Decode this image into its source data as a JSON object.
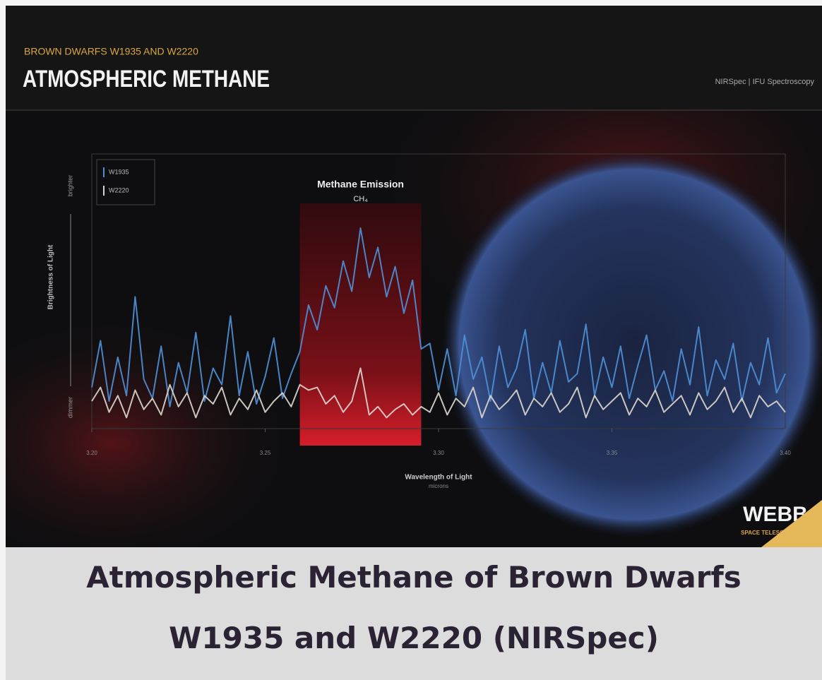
{
  "chart_data": {
    "type": "line",
    "suptitle": "BROWN DWARFS W1935 AND W2220",
    "title": "ATMOSPHERIC METHANE",
    "instrument": "NIRSpec | IFU Spectroscopy",
    "annotation": {
      "title": "Methane Emission",
      "formula": "CH₄",
      "range": [
        3.26,
        3.295
      ],
      "color": "#c8202c"
    },
    "y_label": "Brightness of Light",
    "y_high": "brighter",
    "y_low": "dimmer",
    "x_label": "Wavelength of Light",
    "x_unit": "microns",
    "logo": "WEBB",
    "logo_sub": "SPACE TELESCOPE",
    "xlim": [
      3.2,
      3.4
    ],
    "xticks": [
      {
        "value": 3.2,
        "label": "3.20"
      },
      {
        "value": 3.25,
        "label": "3.25"
      },
      {
        "value": 3.3,
        "label": "3.30"
      },
      {
        "value": 3.35,
        "label": "3.35"
      },
      {
        "value": 3.4,
        "label": "3.40"
      }
    ],
    "ylim": [
      0,
      10
    ],
    "legend": "upper left",
    "x": [
      3.2,
      3.2025,
      3.205,
      3.2075,
      3.21,
      3.2125,
      3.215,
      3.2175,
      3.22,
      3.2225,
      3.225,
      3.2275,
      3.23,
      3.2325,
      3.235,
      3.2375,
      3.24,
      3.2425,
      3.245,
      3.2475,
      3.25,
      3.2525,
      3.255,
      3.2575,
      3.26,
      3.2625,
      3.265,
      3.2675,
      3.27,
      3.2725,
      3.275,
      3.2775,
      3.28,
      3.2825,
      3.285,
      3.2875,
      3.29,
      3.2925,
      3.295,
      3.2975,
      3.3,
      3.3025,
      3.305,
      3.3075,
      3.31,
      3.3125,
      3.315,
      3.3175,
      3.32,
      3.3225,
      3.325,
      3.3275,
      3.33,
      3.3325,
      3.335,
      3.3375,
      3.34,
      3.3425,
      3.345,
      3.3475,
      3.35,
      3.3525,
      3.355,
      3.3575,
      3.36,
      3.3625,
      3.365,
      3.3675,
      3.37,
      3.3725,
      3.375,
      3.3775,
      3.38,
      3.3825,
      3.385,
      3.3875,
      3.39,
      3.3925,
      3.395,
      3.3975,
      3.4
    ],
    "series": [
      {
        "name": "W1935",
        "color": "#4d8fd6",
        "values": [
          1.5,
          3.2,
          1.0,
          2.6,
          1.2,
          4.8,
          1.8,
          1.1,
          3.0,
          0.8,
          2.4,
          1.3,
          3.5,
          1.0,
          2.2,
          1.6,
          4.1,
          1.2,
          2.8,
          0.9,
          1.9,
          3.3,
          1.1,
          2.0,
          2.8,
          4.5,
          3.6,
          5.2,
          4.4,
          6.1,
          5.0,
          7.3,
          5.5,
          6.6,
          4.8,
          5.9,
          4.2,
          5.4,
          2.9,
          3.1,
          1.4,
          2.9,
          1.2,
          3.4,
          1.8,
          2.6,
          1.0,
          3.0,
          1.5,
          2.2,
          3.6,
          1.1,
          2.4,
          1.3,
          3.2,
          1.7,
          2.0,
          3.8,
          1.2,
          2.6,
          1.5,
          3.0,
          1.1,
          2.3,
          3.4,
          1.4,
          2.1,
          1.0,
          2.9,
          1.6,
          3.7,
          1.2,
          2.5,
          1.8,
          3.1,
          1.0,
          2.4,
          1.6,
          3.3,
          1.3,
          2.0
        ]
      },
      {
        "name": "W2220",
        "color": "#d9d4cc",
        "values": [
          1.0,
          1.5,
          0.6,
          1.2,
          0.4,
          1.4,
          0.7,
          1.1,
          0.5,
          1.6,
          0.8,
          1.3,
          0.4,
          1.2,
          0.9,
          1.5,
          0.5,
          1.1,
          0.7,
          1.4,
          0.6,
          1.0,
          1.3,
          0.8,
          1.6,
          1.4,
          1.5,
          0.9,
          1.2,
          0.6,
          1.0,
          2.2,
          0.5,
          0.8,
          0.4,
          0.7,
          0.9,
          0.5,
          0.8,
          0.6,
          1.3,
          0.5,
          1.1,
          0.8,
          1.5,
          0.4,
          1.2,
          0.7,
          1.0,
          1.4,
          0.5,
          1.1,
          0.8,
          1.3,
          0.6,
          0.9,
          1.5,
          0.4,
          1.2,
          0.7,
          1.0,
          1.3,
          0.5,
          1.1,
          0.8,
          1.4,
          0.6,
          0.9,
          1.2,
          0.5,
          1.3,
          0.7,
          1.0,
          1.5,
          0.6,
          1.1,
          0.4,
          1.2,
          0.8,
          1.0,
          0.6
        ]
      }
    ]
  },
  "caption": [
    "Atmospheric Methane of Brown Dwarfs",
    "W1935 and W2220 (NIRSpec)"
  ]
}
